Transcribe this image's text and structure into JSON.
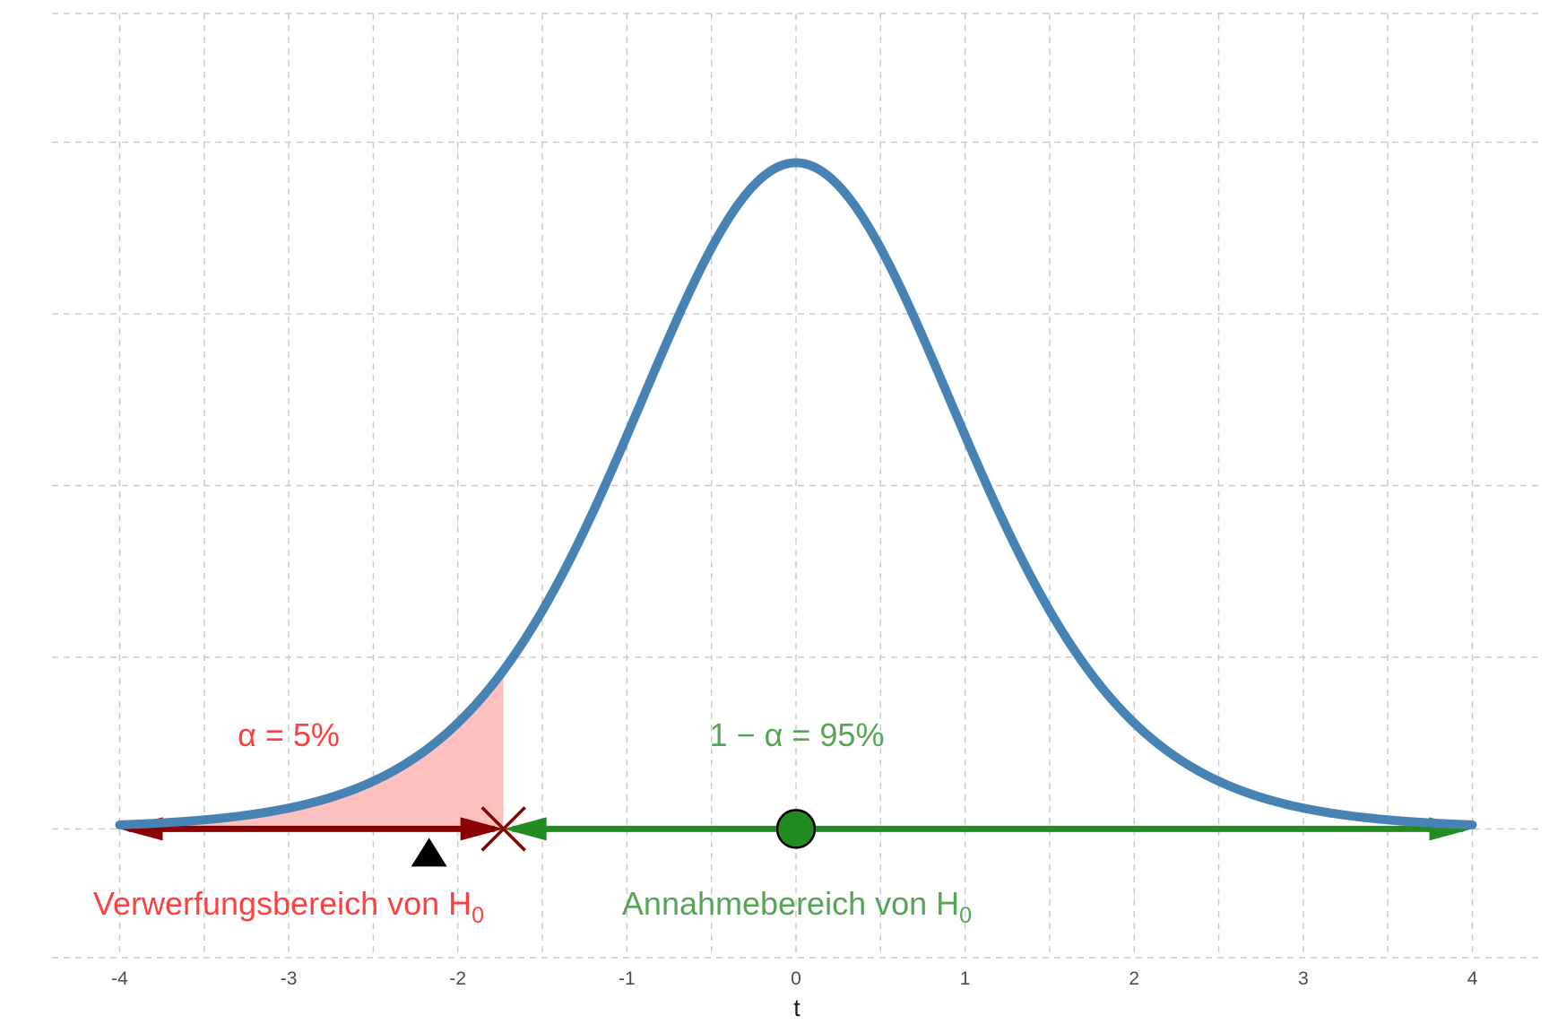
{
  "chart_data": {
    "type": "line",
    "title": "",
    "xlabel": "t",
    "ylabel": "",
    "xlim": [
      -4.4,
      4.4
    ],
    "ylim": [
      -0.075,
      0.475
    ],
    "x_ticks": [
      -4,
      -3,
      -2,
      -1,
      0,
      1,
      2,
      3,
      4
    ],
    "x_tick_labels": [
      "-4",
      "-3",
      "-2",
      "-1",
      "0",
      "1",
      "2",
      "3",
      "4"
    ],
    "y_gridlines": [
      0,
      0.1,
      0.2,
      0.3,
      0.4
    ],
    "grid": true,
    "distribution": {
      "description": "density curve",
      "domain": [
        -4,
        4
      ],
      "color": "#4682b4"
    },
    "critical_value": -1.73,
    "test_statistic": -2.17,
    "center_point": 0,
    "rejection_region": {
      "from": -4,
      "to": -1.73,
      "fill": "#ffc0c0",
      "arrow_color": "#8b0000"
    },
    "acceptance_region": {
      "from": -1.73,
      "to": 4,
      "arrow_color": "#228b22"
    },
    "annotations": {
      "alpha_label": "α = 5%",
      "alpha_color": "#ff4040",
      "confidence_label": "1 − α = 95%",
      "confidence_color": "#56a456",
      "rejection_label": "Verwerfungsbereich von H",
      "rejection_sub": "0",
      "acceptance_label": "Annahmebereich von H",
      "acceptance_sub": "0"
    },
    "colors": {
      "critical_marker": "#8b0000",
      "center_point_fill": "#228b22",
      "statistic_marker": "#000000"
    }
  }
}
